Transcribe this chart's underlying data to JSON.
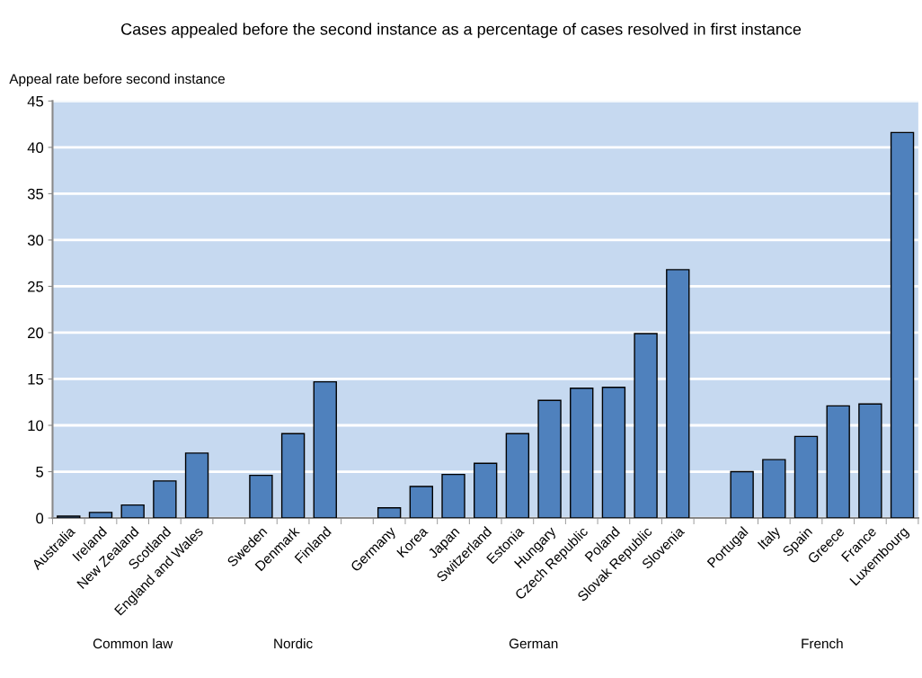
{
  "chart_data": {
    "type": "bar",
    "title": "Cases appealed before the second instance as a percentage of cases resolved in first instance",
    "ylabel": "Appeal rate before second instance",
    "categories": [
      "Australia",
      "Ireland",
      "New Zealand",
      "Scotland",
      "England and Wales",
      null,
      "Sweden",
      "Denmark",
      "Finland",
      null,
      "Germany",
      "Korea",
      "Japan",
      "Switzerland",
      "Estonia",
      "Hungary",
      "Czech Republic",
      "Poland",
      "Slovak Republic",
      "Slovenia",
      null,
      "Portugal",
      "Italy",
      "Spain",
      "Greece",
      "France",
      "Luxembourg"
    ],
    "values": [
      0.2,
      0.6,
      1.4,
      4.0,
      7.0,
      null,
      4.6,
      9.1,
      14.7,
      null,
      1.1,
      3.4,
      4.7,
      5.9,
      9.1,
      12.7,
      14.0,
      14.1,
      19.9,
      26.8,
      null,
      5.0,
      6.3,
      8.8,
      12.1,
      12.3,
      41.6
    ],
    "color": "#4f81bd",
    "ylim": [
      0,
      45
    ],
    "yticks": [
      0,
      5,
      10,
      15,
      20,
      25,
      30,
      35,
      40,
      45
    ],
    "grid": "y",
    "legend": false,
    "annotations": [
      "Common law",
      "Nordic",
      "German",
      "French"
    ]
  }
}
